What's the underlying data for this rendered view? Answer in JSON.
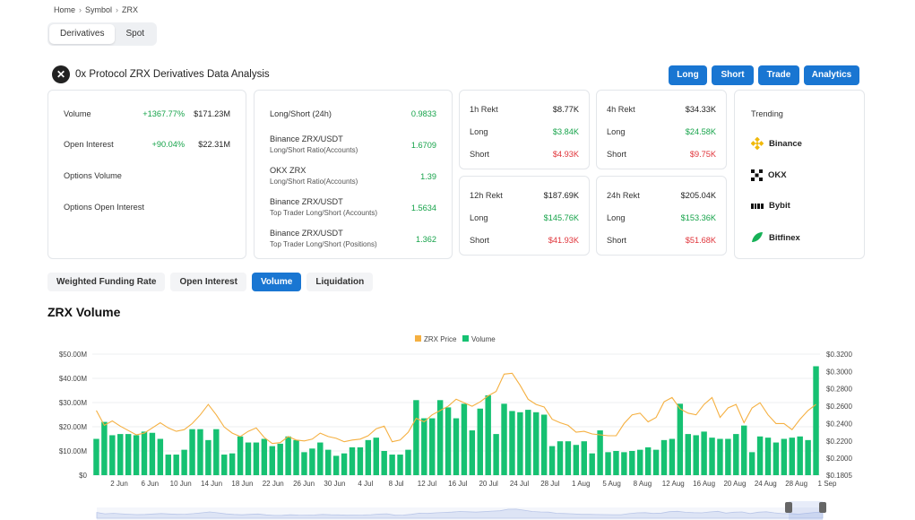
{
  "breadcrumb": {
    "home": "Home",
    "symbol": "Symbol",
    "current": "ZRX",
    "sep": "›"
  },
  "market_tabs": [
    {
      "label": "Derivatives",
      "active": true
    },
    {
      "label": "Spot",
      "active": false
    }
  ],
  "page_title": "0x Protocol ZRX Derivatives Data Analysis",
  "logo_glyph": "✕",
  "actions": {
    "long": "Long",
    "short": "Short",
    "trade": "Trade",
    "analytics": "Analytics"
  },
  "overview": {
    "volume_label": "Volume",
    "volume_change": "+1367.77%",
    "volume_value": "$171.23M",
    "oi_label": "Open Interest",
    "oi_change": "+90.04%",
    "oi_value": "$22.31M",
    "options_volume_label": "Options Volume",
    "options_oi_label": "Options Open Interest"
  },
  "ratios": {
    "ls_label": "Long/Short (24h)",
    "ls_value": "0.9833",
    "binance_title": "Binance ZRX/USDT",
    "binance_sub": "Long/Short Ratio(Accounts)",
    "binance_value": "1.6709",
    "okx_title": "OKX ZRX",
    "okx_sub": "Long/Short Ratio(Accounts)",
    "okx_value": "1.39",
    "top_acc_title": "Binance ZRX/USDT",
    "top_acc_sub": "Top Trader Long/Short (Accounts)",
    "top_acc_value": "1.5634",
    "top_pos_title": "Binance ZRX/USDT",
    "top_pos_sub": "Top Trader Long/Short (Positions)",
    "top_pos_value": "1.362"
  },
  "rekt": [
    {
      "period": "1h Rekt",
      "total": "$8.77K",
      "long_label": "Long",
      "long": "$3.84K",
      "short_label": "Short",
      "short": "$4.93K"
    },
    {
      "period": "4h Rekt",
      "total": "$34.33K",
      "long_label": "Long",
      "long": "$24.58K",
      "short_label": "Short",
      "short": "$9.75K"
    },
    {
      "period": "12h Rekt",
      "total": "$187.69K",
      "long_label": "Long",
      "long": "$145.76K",
      "short_label": "Short",
      "short": "$41.93K"
    },
    {
      "period": "24h Rekt",
      "total": "$205.04K",
      "long_label": "Long",
      "long": "$153.36K",
      "short_label": "Short",
      "short": "$51.68K"
    }
  ],
  "trending": {
    "title": "Trending",
    "items": [
      {
        "name": "Binance",
        "icon": "binance-icon",
        "color": "#f0b90b"
      },
      {
        "name": "OKX",
        "icon": "okx-icon",
        "color": "#111111"
      },
      {
        "name": "Bybit",
        "icon": "bybit-icon",
        "color": "#111111"
      },
      {
        "name": "Bitfinex",
        "icon": "bitfinex-icon",
        "color": "#16b157"
      }
    ]
  },
  "chart_tabs": [
    {
      "label": "Weighted Funding Rate",
      "active": false
    },
    {
      "label": "Open Interest",
      "active": false
    },
    {
      "label": "Volume",
      "active": true
    },
    {
      "label": "Liquidation",
      "active": false
    }
  ],
  "section_title": "ZRX Volume",
  "colors": {
    "accent": "#1976d2",
    "bar": "#16c172",
    "price": "#f5b041",
    "up": "#16a34a",
    "down": "#e0343a"
  },
  "chart_data": {
    "type": "bar",
    "legend": [
      {
        "name": "ZRX Price",
        "color": "#f5b041"
      },
      {
        "name": "Volume",
        "color": "#16c172"
      }
    ],
    "x_tick_labels": [
      "2 Jun",
      "6 Jun",
      "10 Jun",
      "14 Jun",
      "18 Jun",
      "22 Jun",
      "26 Jun",
      "30 Jun",
      "4 Jul",
      "8 Jul",
      "12 Jul",
      "16 Jul",
      "20 Jul",
      "24 Jul",
      "28 Jul",
      "1 Aug",
      "5 Aug",
      "8 Aug",
      "12 Aug",
      "16 Aug",
      "20 Aug",
      "24 Aug",
      "28 Aug",
      "1 Sep"
    ],
    "y_left_ticks": [
      "$50.00M",
      "$40.00M",
      "$30.00M",
      "$20.00M",
      "$10.00M",
      "$0"
    ],
    "y_right_ticks": [
      "$0.3200",
      "$0.3000",
      "$0.2800",
      "$0.2600",
      "$0.2400",
      "$0.2200",
      "$0.2000",
      "$0.1805"
    ],
    "ylim_left": [
      0,
      50
    ],
    "ylim_right": [
      0.1805,
      0.32
    ],
    "series": [
      {
        "name": "Volume",
        "unit": "$M",
        "values": [
          15,
          22,
          16.5,
          17,
          17,
          16.5,
          18,
          17.5,
          15,
          8.5,
          8.5,
          10.5,
          19,
          19,
          14.5,
          19,
          8.5,
          9,
          16,
          13.5,
          13.5,
          15,
          12,
          13,
          16,
          14.5,
          9.5,
          11,
          13.5,
          10.5,
          8,
          9,
          11.5,
          11.5,
          14.5,
          15.5,
          10,
          8.5,
          8.5,
          10.5,
          31,
          23.5,
          23.5,
          31,
          28,
          23.5,
          29.5,
          18.5,
          27.5,
          33,
          17,
          29.5,
          26.5,
          26,
          27,
          26,
          25,
          12,
          14,
          14,
          12.5,
          14,
          9,
          18.5,
          9.5,
          10,
          9.5,
          10,
          10.5,
          11.5,
          10.5,
          14.5,
          15,
          29.5,
          17,
          16.5,
          18,
          15.5,
          15,
          15,
          17,
          20.5,
          9.5,
          16,
          15.5,
          13.5,
          15,
          15.5,
          16,
          14.5,
          45
        ]
      },
      {
        "name": "ZRX Price",
        "unit": "$",
        "values": [
          0.255,
          0.238,
          0.243,
          0.237,
          0.232,
          0.227,
          0.229,
          0.235,
          0.241,
          0.235,
          0.231,
          0.233,
          0.24,
          0.25,
          0.262,
          0.25,
          0.236,
          0.229,
          0.225,
          0.231,
          0.235,
          0.224,
          0.217,
          0.218,
          0.225,
          0.221,
          0.22,
          0.222,
          0.229,
          0.225,
          0.223,
          0.219,
          0.221,
          0.222,
          0.226,
          0.234,
          0.237,
          0.219,
          0.221,
          0.23,
          0.246,
          0.242,
          0.25,
          0.255,
          0.26,
          0.268,
          0.264,
          0.26,
          0.265,
          0.272,
          0.277,
          0.297,
          0.298,
          0.284,
          0.268,
          0.262,
          0.259,
          0.245,
          0.241,
          0.238,
          0.23,
          0.231,
          0.228,
          0.227,
          0.226,
          0.226,
          0.24,
          0.25,
          0.252,
          0.242,
          0.247,
          0.265,
          0.27,
          0.257,
          0.252,
          0.25,
          0.262,
          0.27,
          0.247,
          0.258,
          0.262,
          0.241,
          0.258,
          0.264,
          0.25,
          0.24,
          0.24,
          0.233,
          0.245,
          0.255,
          0.262
        ]
      }
    ]
  }
}
